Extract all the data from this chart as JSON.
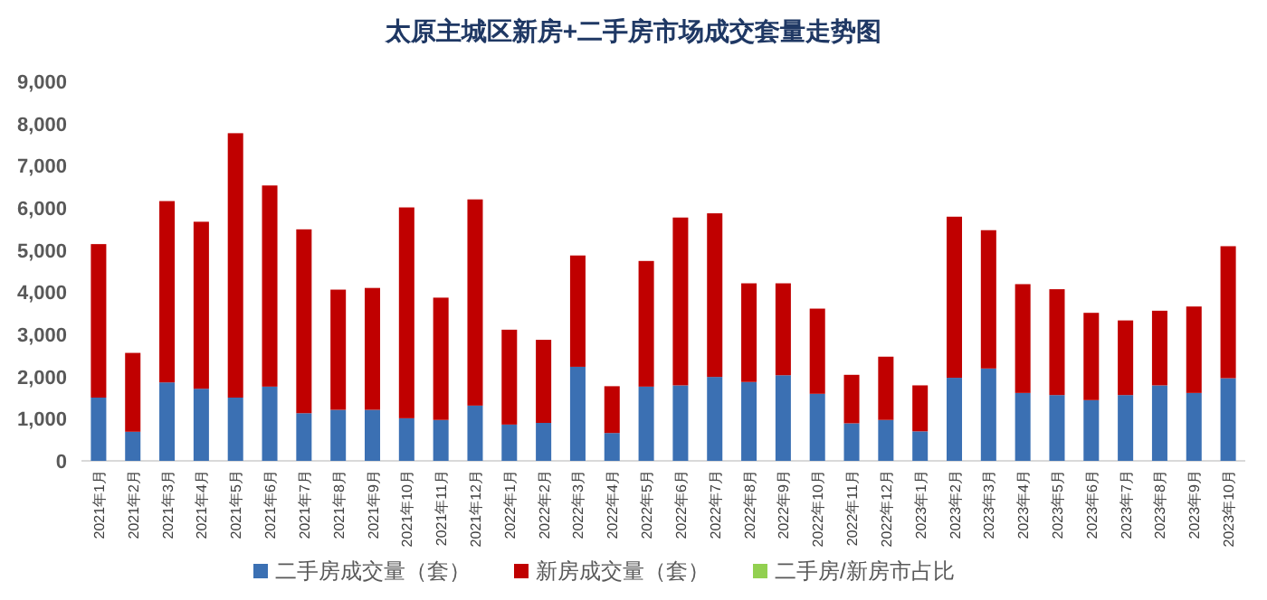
{
  "chart_data": {
    "type": "bar",
    "stacked": true,
    "title": "太原主城区新房+二手房市场成交套量走势图",
    "categories": [
      "2021年1月",
      "2021年2月",
      "2021年3月",
      "2021年4月",
      "2021年5月",
      "2021年6月",
      "2021年7月",
      "2021年8月",
      "2021年9月",
      "2021年10月",
      "2021年11月",
      "2021年12月",
      "2022年1月",
      "2022年2月",
      "2022年3月",
      "2022年4月",
      "2022年5月",
      "2022年6月",
      "2022年7月",
      "2022年8月",
      "2022年9月",
      "2022年10月",
      "2022年11月",
      "2022年12月",
      "2023年1月",
      "2023年2月",
      "2023年3月",
      "2023年4月",
      "2023年5月",
      "2023年6月",
      "2023年7月",
      "2023年8月",
      "2023年9月",
      "2023年10月"
    ],
    "series": [
      {
        "name": "二手房成交量（套）",
        "color": "#3b70b3",
        "values": [
          1500,
          690,
          1860,
          1710,
          1500,
          1760,
          1130,
          1210,
          1210,
          1010,
          970,
          1310,
          860,
          900,
          2230,
          660,
          1760,
          1790,
          1990,
          1870,
          2030,
          1590,
          890,
          970,
          700,
          1970,
          2190,
          1610,
          1560,
          1440,
          1560,
          1790,
          1610,
          1960
        ]
      },
      {
        "name": "新房成交量（套）",
        "color": "#c00000",
        "values": [
          3640,
          1870,
          4300,
          3960,
          6270,
          4770,
          4360,
          2850,
          2890,
          5000,
          2900,
          4890,
          2250,
          1970,
          2640,
          1110,
          2980,
          3980,
          3880,
          2340,
          2180,
          2020,
          1150,
          1500,
          1090,
          3820,
          3280,
          2580,
          2510,
          2070,
          1770,
          1770,
          2050,
          3130
        ]
      },
      {
        "name": "二手房/新房市占比",
        "color": "#92d050",
        "values": [
          null,
          null,
          null,
          null,
          null,
          null,
          null,
          null,
          null,
          null,
          null,
          null,
          null,
          null,
          null,
          null,
          null,
          null,
          null,
          null,
          null,
          null,
          null,
          null,
          null,
          null,
          null,
          null,
          null,
          null,
          null,
          null,
          null,
          null
        ]
      }
    ],
    "ylim": [
      0,
      9000
    ],
    "yticks": [
      {
        "value": 0,
        "label": "0"
      },
      {
        "value": 1000,
        "label": "1,000"
      },
      {
        "value": 2000,
        "label": "2,000"
      },
      {
        "value": 3000,
        "label": "3,000"
      },
      {
        "value": 4000,
        "label": "4,000"
      },
      {
        "value": 5000,
        "label": "5,000"
      },
      {
        "value": 6000,
        "label": "6,000"
      },
      {
        "value": 7000,
        "label": "7,000"
      },
      {
        "value": 8000,
        "label": "8,000"
      },
      {
        "value": 9000,
        "label": "9,000"
      }
    ],
    "grid": false,
    "legend": "bottom"
  }
}
